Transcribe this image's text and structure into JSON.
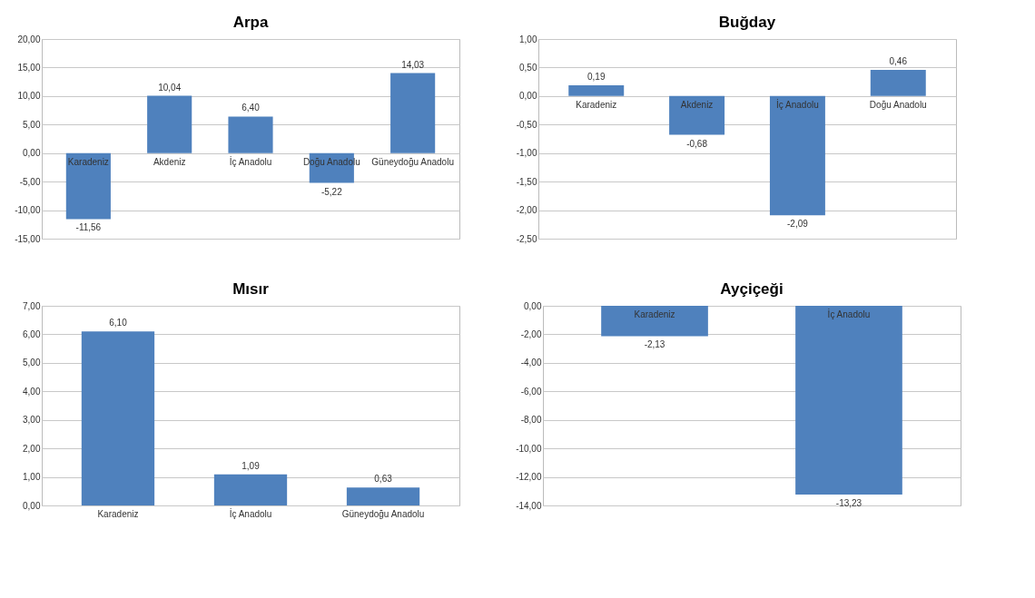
{
  "chart_data": [
    {
      "type": "bar",
      "title": "Arpa",
      "categories": [
        "Karadeniz",
        "Akdeniz",
        "İç Anadolu",
        "Doğu Anadolu",
        "Güneydoğu Anadolu"
      ],
      "values": [
        -11.56,
        10.04,
        6.4,
        -5.22,
        14.03
      ],
      "value_labels": [
        "-11,56",
        "10,04",
        "6,40",
        "-5,22",
        "14,03"
      ],
      "color": "#4f81bd",
      "ylim": [
        -15,
        20
      ],
      "yticks": [
        {
          "value": -15,
          "label": "-15,00"
        },
        {
          "value": -10,
          "label": "-10,00"
        },
        {
          "value": -5,
          "label": "-5,00"
        },
        {
          "value": 0,
          "label": "0,00"
        },
        {
          "value": 5,
          "label": "5,00"
        },
        {
          "value": 10,
          "label": "10,00"
        },
        {
          "value": 15,
          "label": "15,00"
        },
        {
          "value": 20,
          "label": "20,00"
        }
      ],
      "grid": "y"
    },
    {
      "type": "bar",
      "title": "Buğday",
      "categories": [
        "Karadeniz",
        "Akdeniz",
        "İç Anadolu",
        "Doğu Anadolu"
      ],
      "values": [
        0.19,
        -0.68,
        -2.09,
        0.46
      ],
      "value_labels": [
        "0,19",
        "-0,68",
        "-2,09",
        "0,46"
      ],
      "color": "#4f81bd",
      "ylim": [
        -2.5,
        1
      ],
      "yticks": [
        {
          "value": -2.5,
          "label": "-2,50"
        },
        {
          "value": -2,
          "label": "-2,00"
        },
        {
          "value": -1.5,
          "label": "-1,50"
        },
        {
          "value": -1,
          "label": "-1,00"
        },
        {
          "value": -0.5,
          "label": "-0,50"
        },
        {
          "value": 0,
          "label": "0,00"
        },
        {
          "value": 0.5,
          "label": "0,50"
        },
        {
          "value": 1,
          "label": "1,00"
        }
      ],
      "grid": "y"
    },
    {
      "type": "bar",
      "title": "Mısır",
      "categories": [
        "Karadeniz",
        "İç Anadolu",
        "Güneydoğu Anadolu"
      ],
      "values": [
        6.1,
        1.09,
        0.63
      ],
      "value_labels": [
        "6,10",
        "1,09",
        "0,63"
      ],
      "color": "#4f81bd",
      "ylim": [
        0,
        7
      ],
      "yticks": [
        {
          "value": 0,
          "label": "0,00"
        },
        {
          "value": 1,
          "label": "1,00"
        },
        {
          "value": 2,
          "label": "2,00"
        },
        {
          "value": 3,
          "label": "3,00"
        },
        {
          "value": 4,
          "label": "4,00"
        },
        {
          "value": 5,
          "label": "5,00"
        },
        {
          "value": 6,
          "label": "6,00"
        },
        {
          "value": 7,
          "label": "7,00"
        }
      ],
      "grid": "y"
    },
    {
      "type": "bar",
      "title": "Ayçiçeği",
      "categories": [
        "Karadeniz",
        "İç Anadolu"
      ],
      "values": [
        -2.13,
        -13.23
      ],
      "value_labels": [
        "-2,13",
        "-13,23"
      ],
      "color": "#4f81bd",
      "ylim": [
        -14,
        0
      ],
      "yticks": [
        {
          "value": -14,
          "label": "-14,00"
        },
        {
          "value": -12,
          "label": "-12,00"
        },
        {
          "value": -10,
          "label": "-10,00"
        },
        {
          "value": -8,
          "label": "-8,00"
        },
        {
          "value": -6,
          "label": "-6,00"
        },
        {
          "value": -4,
          "label": "-4,00"
        },
        {
          "value": -2,
          "label": "-2,00"
        },
        {
          "value": 0,
          "label": "0,00"
        }
      ],
      "grid": "y"
    }
  ]
}
